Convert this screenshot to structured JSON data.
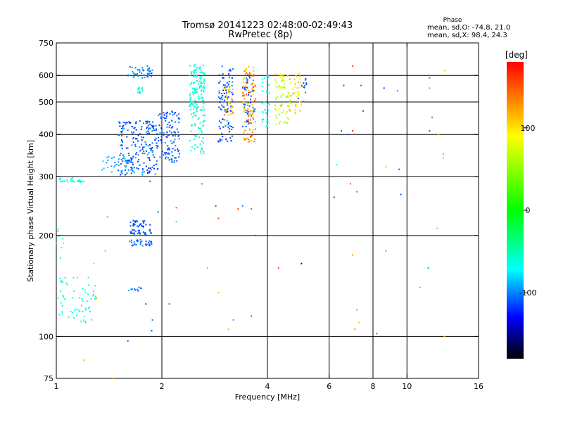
{
  "chart_data": {
    "type": "scatter",
    "title": "Tromsø 20141223 02:48:00-02:49:43",
    "subtitle": "RwPretec (8p)",
    "xlabel": "Frequency [MHz]",
    "ylabel": "Stationary phase Virtual Height [km]",
    "x_scale": "log2",
    "y_scale": "log",
    "xlim": [
      1,
      16
    ],
    "ylim": [
      75,
      750
    ],
    "x_ticks": [
      1,
      2,
      4,
      6,
      8,
      10,
      16
    ],
    "y_ticks": [
      75,
      100,
      200,
      300,
      400,
      500,
      600,
      750
    ],
    "x_gridlines": [
      2,
      4,
      6,
      8,
      10
    ],
    "y_gridlines": [
      100,
      200,
      300,
      400,
      500,
      600
    ],
    "grid": true,
    "stats": {
      "heading": "Phase",
      "line_o": "mean, sd,O: -74.8, 21.0",
      "line_x": "mean, sd,X: 98.4, 24.3"
    },
    "colorbar": {
      "label": "[deg]",
      "range": [
        -180,
        180
      ],
      "ticks": [
        100,
        0,
        -100
      ],
      "colors": [
        "#ff0000",
        "#ffff00",
        "#00ff00",
        "#00ffff",
        "#0000ff",
        "#000000"
      ]
    },
    "clusters": [
      {
        "fmin": 1.6,
        "fmax": 1.88,
        "hmin": 585,
        "hmax": 640,
        "n": 45,
        "phase_min": -115,
        "phase_max": -85
      },
      {
        "fmin": 1.7,
        "fmax": 1.78,
        "hmin": 530,
        "hmax": 560,
        "n": 12,
        "phase_min": -80,
        "phase_max": -60
      },
      {
        "fmin": 2.4,
        "fmax": 2.65,
        "hmin": 470,
        "hmax": 650,
        "n": 120,
        "phase_min": -75,
        "phase_max": -45
      },
      {
        "fmin": 2.4,
        "fmax": 2.65,
        "hmin": 350,
        "hmax": 470,
        "n": 50,
        "phase_min": -70,
        "phase_max": -45
      },
      {
        "fmin": 2.9,
        "fmax": 3.2,
        "hmin": 380,
        "hmax": 640,
        "n": 100,
        "phase_min": -125,
        "phase_max": -95
      },
      {
        "fmin": 3.0,
        "fmax": 3.2,
        "hmin": 430,
        "hmax": 560,
        "n": 35,
        "phase_min": 90,
        "phase_max": 150
      },
      {
        "fmin": 3.4,
        "fmax": 3.7,
        "hmin": 380,
        "hmax": 640,
        "n": 110,
        "phase_min": 95,
        "phase_max": 160
      },
      {
        "fmin": 3.4,
        "fmax": 3.7,
        "hmin": 420,
        "hmax": 600,
        "n": 40,
        "phase_min": -120,
        "phase_max": -95
      },
      {
        "fmin": 3.85,
        "fmax": 4.05,
        "hmin": 420,
        "hmax": 610,
        "n": 35,
        "phase_min": -80,
        "phase_max": -55
      },
      {
        "fmin": 4.2,
        "fmax": 4.6,
        "hmin": 430,
        "hmax": 610,
        "n": 60,
        "phase_min": 40,
        "phase_max": 100
      },
      {
        "fmin": 4.6,
        "fmax": 5.0,
        "hmin": 460,
        "hmax": 610,
        "n": 45,
        "phase_min": 60,
        "phase_max": 130
      },
      {
        "fmin": 4.9,
        "fmax": 5.2,
        "hmin": 500,
        "hmax": 600,
        "n": 12,
        "phase_min": -120,
        "phase_max": -100
      },
      {
        "fmin": 1.5,
        "fmax": 1.95,
        "hmin": 303,
        "hmax": 440,
        "n": 200,
        "phase_min": -125,
        "phase_max": -95
      },
      {
        "fmin": 1.35,
        "fmax": 1.7,
        "hmin": 305,
        "hmax": 345,
        "n": 40,
        "phase_min": -100,
        "phase_max": -80
      },
      {
        "fmin": 1.95,
        "fmax": 2.25,
        "hmin": 330,
        "hmax": 470,
        "n": 110,
        "phase_min": -125,
        "phase_max": -95
      },
      {
        "fmin": 1.02,
        "fmax": 1.2,
        "hmin": 288,
        "hmax": 297,
        "n": 25,
        "phase_min": -70,
        "phase_max": -55
      },
      {
        "fmin": 1.62,
        "fmax": 1.88,
        "hmin": 212,
        "hmax": 222,
        "n": 30,
        "phase_min": -120,
        "phase_max": -105
      },
      {
        "fmin": 1.62,
        "fmax": 1.88,
        "hmin": 200,
        "hmax": 208,
        "n": 30,
        "phase_min": -120,
        "phase_max": -105
      },
      {
        "fmin": 1.62,
        "fmax": 1.88,
        "hmin": 186,
        "hmax": 195,
        "n": 30,
        "phase_min": -115,
        "phase_max": -100
      },
      {
        "fmin": 1.0,
        "fmax": 1.3,
        "hmin": 110,
        "hmax": 150,
        "n": 60,
        "phase_min": -70,
        "phase_max": -55
      },
      {
        "fmin": 1.6,
        "fmax": 1.75,
        "hmin": 136,
        "hmax": 140,
        "n": 10,
        "phase_min": -110,
        "phase_max": -95
      },
      {
        "fmin": 1.0,
        "fmax": 1.05,
        "hmin": 170,
        "hmax": 210,
        "n": 8,
        "phase_min": -70,
        "phase_max": -55
      }
    ],
    "sparse_points": [
      {
        "x": 1.4,
        "y": 227,
        "phase": 130
      },
      {
        "x": 1.3,
        "y": 130,
        "phase": 125
      },
      {
        "x": 1.38,
        "y": 180,
        "phase": -60
      },
      {
        "x": 1.2,
        "y": 85,
        "phase": 120
      },
      {
        "x": 1.45,
        "y": 75,
        "phase": 130
      },
      {
        "x": 1.28,
        "y": 165,
        "phase": 110
      },
      {
        "x": 1.85,
        "y": 290,
        "phase": -110
      },
      {
        "x": 1.87,
        "y": 104,
        "phase": -120
      },
      {
        "x": 1.88,
        "y": 112,
        "phase": -100
      },
      {
        "x": 1.6,
        "y": 97,
        "phase": -110
      },
      {
        "x": 1.8,
        "y": 125,
        "phase": -110
      },
      {
        "x": 1.95,
        "y": 235,
        "phase": -105
      },
      {
        "x": 2.1,
        "y": 125,
        "phase": -100
      },
      {
        "x": 2.2,
        "y": 242,
        "phase": 150
      },
      {
        "x": 2.6,
        "y": 285,
        "phase": 150
      },
      {
        "x": 2.7,
        "y": 160,
        "phase": -70
      },
      {
        "x": 2.85,
        "y": 245,
        "phase": -110
      },
      {
        "x": 2.9,
        "y": 225,
        "phase": 150
      },
      {
        "x": 2.9,
        "y": 135,
        "phase": 115
      },
      {
        "x": 2.2,
        "y": 220,
        "phase": -80
      },
      {
        "x": 3.1,
        "y": 105,
        "phase": 120
      },
      {
        "x": 3.2,
        "y": 112,
        "phase": -90
      },
      {
        "x": 3.3,
        "y": 240,
        "phase": 150
      },
      {
        "x": 3.4,
        "y": 245,
        "phase": -100
      },
      {
        "x": 3.6,
        "y": 240,
        "phase": 150
      },
      {
        "x": 3.6,
        "y": 115,
        "phase": -100
      },
      {
        "x": 3.7,
        "y": 200,
        "phase": -110
      },
      {
        "x": 4.3,
        "y": 160,
        "phase": 150
      },
      {
        "x": 5.0,
        "y": 165,
        "phase": -150
      },
      {
        "x": 6.3,
        "y": 325,
        "phase": -60
      },
      {
        "x": 6.5,
        "y": 410,
        "phase": -110
      },
      {
        "x": 6.8,
        "y": 400,
        "phase": -110
      },
      {
        "x": 7.0,
        "y": 410,
        "phase": 170
      },
      {
        "x": 6.9,
        "y": 285,
        "phase": 150
      },
      {
        "x": 7.2,
        "y": 270,
        "phase": 150
      },
      {
        "x": 7.0,
        "y": 175,
        "phase": 130
      },
      {
        "x": 7.2,
        "y": 120,
        "phase": 130
      },
      {
        "x": 7.1,
        "y": 105,
        "phase": 130
      },
      {
        "x": 7.3,
        "y": 110,
        "phase": 110
      },
      {
        "x": 7.5,
        "y": 470,
        "phase": -110
      },
      {
        "x": 7.4,
        "y": 560,
        "phase": -100
      },
      {
        "x": 7.0,
        "y": 640,
        "phase": 160
      },
      {
        "x": 6.6,
        "y": 560,
        "phase": -110
      },
      {
        "x": 6.2,
        "y": 260,
        "phase": -110
      },
      {
        "x": 8.2,
        "y": 102,
        "phase": 160
      },
      {
        "x": 8.6,
        "y": 550,
        "phase": -110
      },
      {
        "x": 8.7,
        "y": 180,
        "phase": 130
      },
      {
        "x": 8.7,
        "y": 320,
        "phase": 110
      },
      {
        "x": 9.4,
        "y": 540,
        "phase": -90
      },
      {
        "x": 9.5,
        "y": 315,
        "phase": -110
      },
      {
        "x": 9.6,
        "y": 265,
        "phase": -110
      },
      {
        "x": 10.9,
        "y": 140,
        "phase": -40
      },
      {
        "x": 11.6,
        "y": 590,
        "phase": -100
      },
      {
        "x": 11.6,
        "y": 550,
        "phase": -80
      },
      {
        "x": 11.8,
        "y": 450,
        "phase": 160
      },
      {
        "x": 11.6,
        "y": 410,
        "phase": -110
      },
      {
        "x": 12.3,
        "y": 400,
        "phase": 110
      },
      {
        "x": 11.5,
        "y": 160,
        "phase": -90
      },
      {
        "x": 12.8,
        "y": 620,
        "phase": 110
      },
      {
        "x": 12.7,
        "y": 350,
        "phase": -60
      },
      {
        "x": 12.7,
        "y": 340,
        "phase": 110
      },
      {
        "x": 12.2,
        "y": 210,
        "phase": 120
      },
      {
        "x": 12.8,
        "y": 100,
        "phase": 120
      }
    ]
  }
}
